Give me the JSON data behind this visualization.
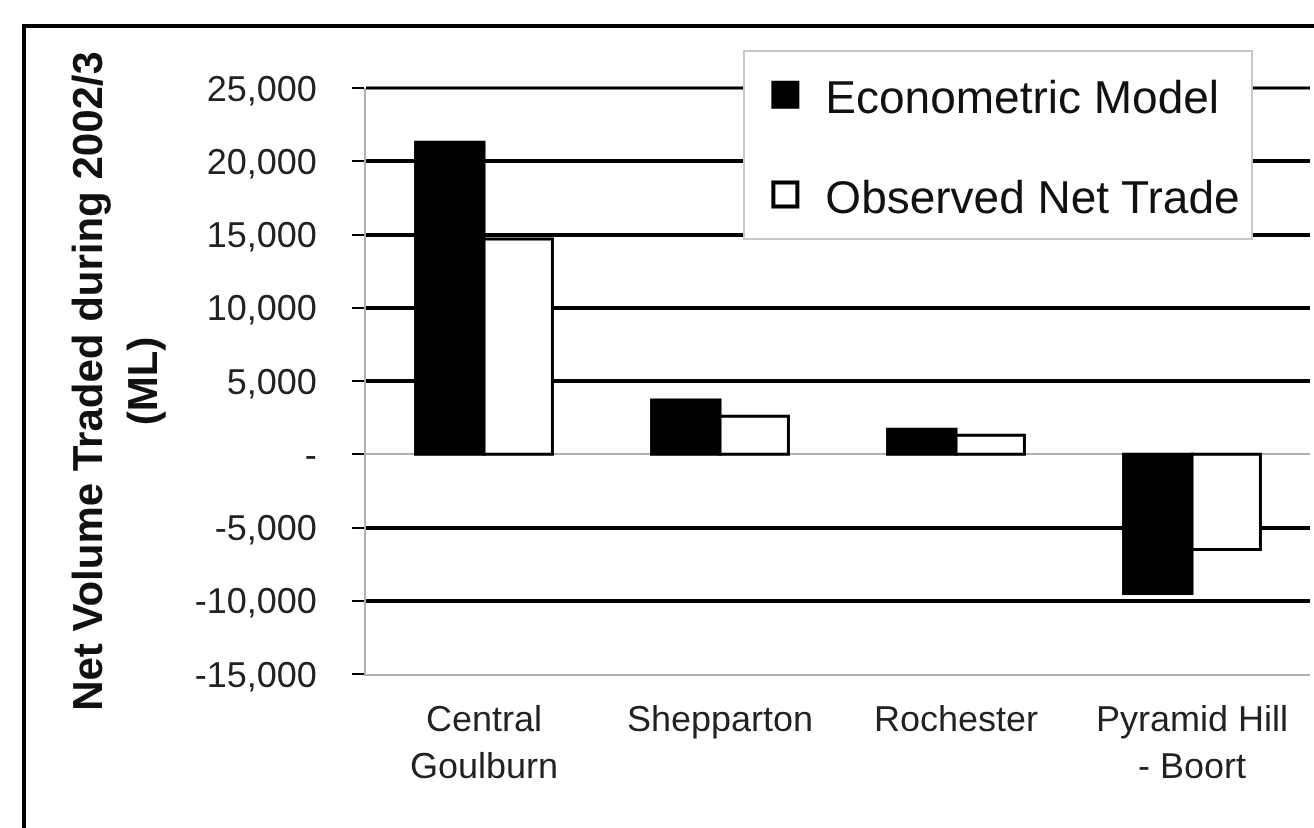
{
  "chart_data": {
    "type": "bar",
    "ylabel": "Net Volume Traded during 2002/3\n(ML)",
    "categories": [
      "Central\nGoulburn",
      "Shepparton",
      "Rochester",
      "Pyramid Hill\n- Boort"
    ],
    "series": [
      {
        "name": "Econometric Model",
        "color": "#000000",
        "values": [
          21300,
          3700,
          1700,
          -9500
        ]
      },
      {
        "name": "Observed Net Trade",
        "color": "#ffffff",
        "values": [
          14700,
          2600,
          1300,
          -6500
        ]
      }
    ],
    "ylim": [
      -15000,
      25000
    ],
    "yticks": [
      {
        "value": -15000,
        "label": "-15,000"
      },
      {
        "value": -10000,
        "label": "-10,000"
      },
      {
        "value": -5000,
        "label": "-5,000"
      },
      {
        "value": 0,
        "label": "-"
      },
      {
        "value": 5000,
        "label": "5,000"
      },
      {
        "value": 10000,
        "label": "10,000"
      },
      {
        "value": 15000,
        "label": "15,000"
      },
      {
        "value": 20000,
        "label": "20,000"
      },
      {
        "value": 25000,
        "label": "25,000"
      }
    ],
    "grid": "y",
    "legend": "top right"
  }
}
